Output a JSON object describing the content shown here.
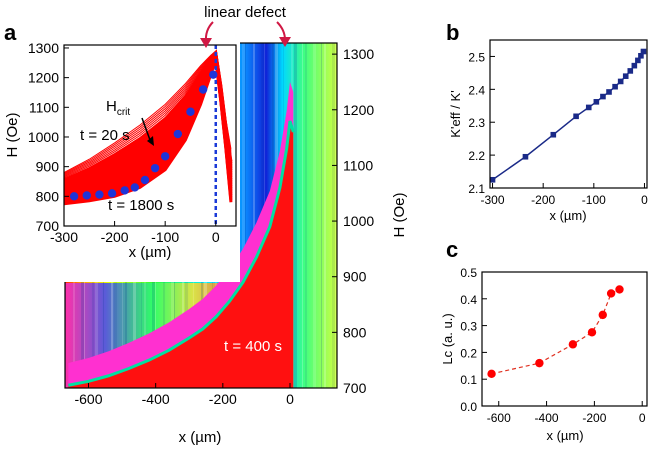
{
  "panel_letters": {
    "a": "a",
    "b": "b",
    "c": "c"
  },
  "annotations": {
    "linear_defect": "linear defect",
    "t20": "t = 20 s",
    "t1800": "t = 1800 s",
    "t400": "t = 400 s",
    "hcrit_main": "H",
    "hcrit_sub": "crit"
  },
  "colors": {
    "curve_red": "#ff0000",
    "dot_blue": "#1f35d8",
    "line_navy": "#1a2a88",
    "dash_red": "#e03020",
    "arrow_crimson": "#d01844"
  },
  "chart_data": [
    {
      "id": "a-map",
      "type": "heatmap",
      "title": "",
      "xlabel": "x (µm)",
      "ylabel": "H (Oe)",
      "xlim": [
        -670,
        140
      ],
      "ylim": [
        700,
        1320
      ],
      "xticks": [
        "-600",
        "-400",
        "-200",
        "0"
      ],
      "xtick_values": [
        -600,
        -400,
        -200,
        0
      ],
      "yticks": [
        "700",
        "800",
        "900",
        "1000",
        "1100",
        "1200",
        "1300"
      ],
      "ytick_values": [
        700,
        800,
        900,
        1000,
        1100,
        1200,
        1300
      ],
      "front": {
        "x": [
          -660,
          -600,
          -540,
          -480,
          -420,
          -360,
          -300,
          -260,
          -220,
          -180,
          -140,
          -100,
          -60,
          -30,
          -10,
          0,
          10
        ],
        "y": [
          705,
          712,
          722,
          735,
          750,
          768,
          790,
          806,
          828,
          856,
          890,
          935,
          990,
          1060,
          1130,
          1180,
          1160
        ]
      },
      "defect_x": 0,
      "annotation_time": "t = 400 s"
    },
    {
      "id": "a-inset",
      "type": "line",
      "xlabel": "x (µm)",
      "ylabel": "H (Oe)",
      "xlim": [
        -300,
        40
      ],
      "ylim": [
        700,
        1310
      ],
      "xticks": [
        "-300",
        "-200",
        "-100",
        "0"
      ],
      "xtick_values": [
        -300,
        -200,
        -100,
        0
      ],
      "yticks": [
        "700",
        "800",
        "900",
        "1000",
        "1100",
        "1200",
        "1300"
      ],
      "ytick_values": [
        700,
        800,
        900,
        1000,
        1100,
        1200,
        1300
      ],
      "series": [
        {
          "name": "t = 20 s",
          "x": [
            -300,
            -250,
            -200,
            -150,
            -100,
            -60,
            -30,
            -10,
            0,
            10,
            20,
            30
          ],
          "y": [
            880,
            925,
            980,
            1040,
            1110,
            1180,
            1240,
            1275,
            1290,
            1190,
            1060,
            960
          ]
        },
        {
          "name": "t = 1800 s",
          "x": [
            -300,
            -250,
            -200,
            -150,
            -100,
            -60,
            -30,
            -10,
            0,
            10,
            20,
            30
          ],
          "y": [
            775,
            785,
            800,
            830,
            890,
            990,
            1110,
            1210,
            1260,
            1120,
            960,
            780
          ]
        }
      ],
      "hcrit_points": {
        "x": [
          -280,
          -255,
          -230,
          -205,
          -180,
          -160,
          -140,
          -120,
          -100,
          -75,
          -50,
          -25,
          -5
        ],
        "y": [
          800,
          803,
          806,
          810,
          820,
          830,
          855,
          895,
          935,
          1010,
          1085,
          1160,
          1210
        ]
      },
      "defect_x": 0
    },
    {
      "id": "b",
      "type": "line",
      "xlabel": "x (µm)",
      "ylabel": "K'eff / K'",
      "xlim": [
        -305,
        5
      ],
      "ylim": [
        2.1,
        2.55
      ],
      "xticks": [
        "-300",
        "-200",
        "-100",
        "0"
      ],
      "xtick_values": [
        -300,
        -200,
        -100,
        0
      ],
      "yticks": [
        "2.1",
        "2.2",
        "2.3",
        "2.4",
        "2.5"
      ],
      "ytick_values": [
        2.1,
        2.2,
        2.3,
        2.4,
        2.5
      ],
      "x": [
        -300,
        -235,
        -180,
        -135,
        -110,
        -95,
        -82,
        -70,
        -58,
        -47,
        -37,
        -28,
        -20,
        -13,
        -7,
        -2
      ],
      "y": [
        2.125,
        2.195,
        2.262,
        2.318,
        2.345,
        2.362,
        2.378,
        2.392,
        2.408,
        2.424,
        2.44,
        2.456,
        2.472,
        2.488,
        2.502,
        2.515
      ]
    },
    {
      "id": "c",
      "type": "scatter",
      "xlabel": "x (µm)",
      "ylabel": "Lc (a. u.)",
      "xlim": [
        -670,
        20
      ],
      "ylim": [
        0,
        0.5
      ],
      "xticks": [
        "-600",
        "-400",
        "-200",
        "0"
      ],
      "xtick_values": [
        -600,
        -400,
        -200,
        0
      ],
      "yticks": [
        "0.0",
        "0.1",
        "0.2",
        "0.3",
        "0.4",
        "0.5"
      ],
      "ytick_values": [
        0,
        0.1,
        0.2,
        0.3,
        0.4,
        0.5
      ],
      "x": [
        -630,
        -430,
        -290,
        -210,
        -165,
        -130,
        -95
      ],
      "y": [
        0.12,
        0.16,
        0.23,
        0.275,
        0.34,
        0.42,
        0.435
      ]
    }
  ]
}
